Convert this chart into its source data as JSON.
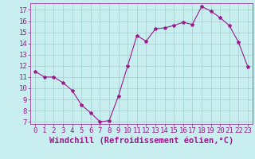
{
  "x": [
    0,
    1,
    2,
    3,
    4,
    5,
    6,
    7,
    8,
    9,
    10,
    11,
    12,
    13,
    14,
    15,
    16,
    17,
    18,
    19,
    20,
    21,
    22,
    23
  ],
  "y": [
    11.5,
    11.0,
    11.0,
    10.5,
    9.8,
    8.5,
    7.8,
    7.0,
    7.1,
    9.3,
    12.0,
    14.7,
    14.2,
    15.3,
    15.4,
    15.6,
    15.9,
    15.7,
    17.3,
    16.9,
    16.3,
    15.6,
    14.1,
    11.9
  ],
  "line_color": "#991a8a",
  "marker": "*",
  "marker_size": 3,
  "bg_color": "#c8eef0",
  "grid_color": "#a0cfc8",
  "xlabel": "Windchill (Refroidissement éolien,°C)",
  "xlabel_color": "#991a8a",
  "tick_color": "#991a8a",
  "ylim": [
    6.8,
    17.6
  ],
  "xlim": [
    -0.5,
    23.5
  ],
  "yticks": [
    7,
    8,
    9,
    10,
    11,
    12,
    13,
    14,
    15,
    16,
    17
  ],
  "xticks": [
    0,
    1,
    2,
    3,
    4,
    5,
    6,
    7,
    8,
    9,
    10,
    11,
    12,
    13,
    14,
    15,
    16,
    17,
    18,
    19,
    20,
    21,
    22,
    23
  ],
  "tick_fontsize": 6.5,
  "xlabel_fontsize": 7.5
}
